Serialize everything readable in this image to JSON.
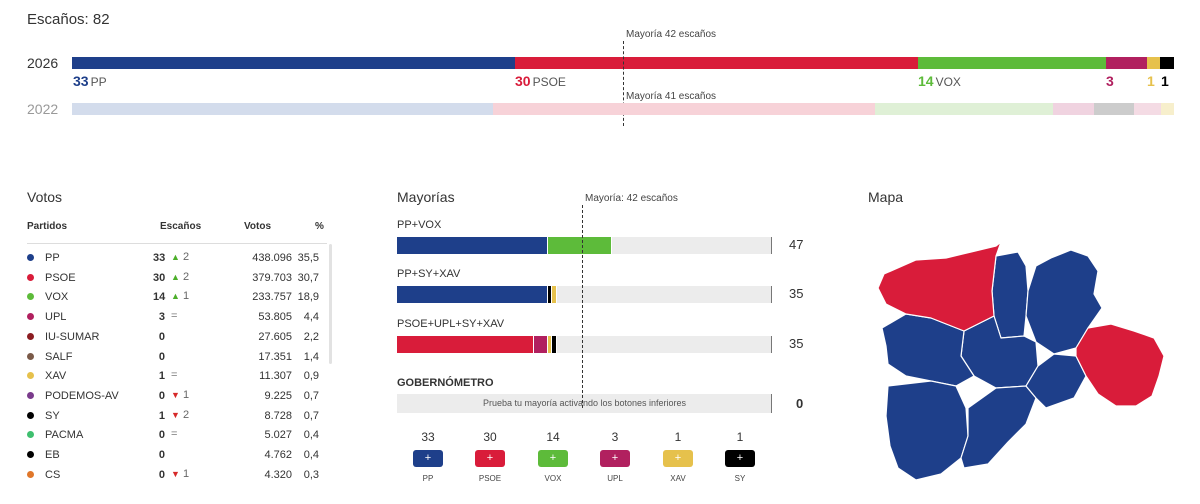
{
  "seats": {
    "title": "Escaños: 82",
    "row_2026": {
      "year": "2026",
      "majority": "Mayoría 42 escaños",
      "labels": [
        {
          "num": "33",
          "party": "PP",
          "color": "#1e3f8a"
        },
        {
          "num": "30",
          "party": "PSOE",
          "color": "#d91c3a"
        },
        {
          "num": "14",
          "party": "VOX",
          "color": "#5dbb3a"
        },
        {
          "num": "3",
          "party": "",
          "color": "#b1205f"
        },
        {
          "num": "1",
          "party": "",
          "color": "#e6c14c"
        },
        {
          "num": "1",
          "party": "",
          "color": "#000000"
        }
      ]
    },
    "row_2022": {
      "year": "2022",
      "majority": "Mayoría 41 escaños"
    }
  },
  "votes": {
    "title": "Votos",
    "headers": {
      "party": "Partidos",
      "seats": "Escaños",
      "votes": "Votos",
      "pct": "%"
    },
    "rows": [
      {
        "party": "PP",
        "color": "#1e3f8a",
        "seats": "33",
        "dir": "up",
        "chg": "2",
        "votes": "438.096",
        "pct": "35,5"
      },
      {
        "party": "PSOE",
        "color": "#d91c3a",
        "seats": "30",
        "dir": "up",
        "chg": "2",
        "votes": "379.703",
        "pct": "30,7"
      },
      {
        "party": "VOX",
        "color": "#5dbb3a",
        "seats": "14",
        "dir": "up",
        "chg": "1",
        "votes": "233.757",
        "pct": "18,9"
      },
      {
        "party": "UPL",
        "color": "#b1205f",
        "seats": "3",
        "dir": "eq",
        "chg": "=",
        "votes": "53.805",
        "pct": "4,4"
      },
      {
        "party": "IU-SUMAR",
        "color": "#8c1d22",
        "seats": "0",
        "dir": "",
        "chg": "",
        "votes": "27.605",
        "pct": "2,2"
      },
      {
        "party": "SALF",
        "color": "#7a5a48",
        "seats": "0",
        "dir": "",
        "chg": "",
        "votes": "17.351",
        "pct": "1,4"
      },
      {
        "party": "XAV",
        "color": "#e6c14c",
        "seats": "1",
        "dir": "eq",
        "chg": "=",
        "votes": "11.307",
        "pct": "0,9"
      },
      {
        "party": "PODEMOS-AV",
        "color": "#7a3b8c",
        "seats": "0",
        "dir": "down",
        "chg": "1",
        "votes": "9.225",
        "pct": "0,7"
      },
      {
        "party": "SY",
        "color": "#000000",
        "seats": "1",
        "dir": "down",
        "chg": "2",
        "votes": "8.728",
        "pct": "0,7"
      },
      {
        "party": "PACMA",
        "color": "#3fbf6f",
        "seats": "0",
        "dir": "eq",
        "chg": "=",
        "votes": "5.027",
        "pct": "0,4"
      },
      {
        "party": "EB",
        "color": "#000000",
        "seats": "0",
        "dir": "",
        "chg": "",
        "votes": "4.762",
        "pct": "0,4"
      },
      {
        "party": "CS",
        "color": "#e0772a",
        "seats": "0",
        "dir": "down",
        "chg": "1",
        "votes": "4.320",
        "pct": "0,3"
      }
    ]
  },
  "majorities": {
    "title": "Mayorías",
    "majority": "Mayoría: 42 escaños",
    "combos": [
      {
        "label": "PP+VOX",
        "total": "47",
        "parts": [
          {
            "seats": 33,
            "color": "#1e3f8a"
          },
          {
            "seats": 14,
            "color": "#5dbb3a"
          }
        ]
      },
      {
        "label": "PP+SY+XAV",
        "total": "35",
        "parts": [
          {
            "seats": 33,
            "color": "#1e3f8a"
          },
          {
            "seats": 1,
            "color": "#000000"
          },
          {
            "seats": 1,
            "color": "#e6c14c"
          }
        ]
      },
      {
        "label": "PSOE+UPL+SY+XAV",
        "total": "35",
        "parts": [
          {
            "seats": 30,
            "color": "#d91c3a"
          },
          {
            "seats": 3,
            "color": "#b1205f"
          },
          {
            "seats": 1,
            "color": "#e6c14c"
          },
          {
            "seats": 1,
            "color": "#000000"
          }
        ]
      }
    ],
    "gobernometro": {
      "title": "GOBERNÓMETRO",
      "text": "Prueba tu mayoría activando los botones inferiores",
      "total": "0"
    },
    "buttons": [
      {
        "num": "33",
        "label": "PP",
        "color": "#1e3f8a"
      },
      {
        "num": "30",
        "label": "PSOE",
        "color": "#d91c3a"
      },
      {
        "num": "14",
        "label": "VOX",
        "color": "#5dbb3a"
      },
      {
        "num": "3",
        "label": "UPL",
        "color": "#b1205f"
      },
      {
        "num": "1",
        "label": "XAV",
        "color": "#e6c14c"
      },
      {
        "num": "1",
        "label": "SY",
        "color": "#000000"
      }
    ],
    "button_symbol": "+"
  },
  "map": {
    "title": "Mapa",
    "blue": "#1e3f8a",
    "red": "#d91c3a"
  }
}
